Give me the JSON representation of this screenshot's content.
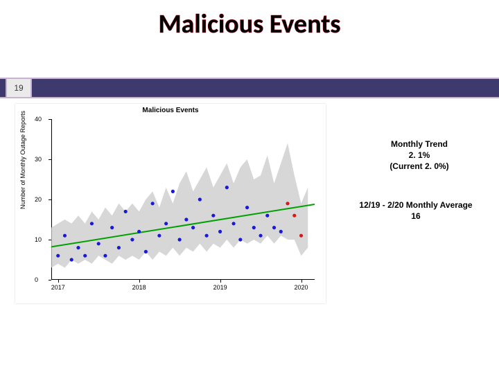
{
  "title": "Malicious Events",
  "page_number": "19",
  "info_block_1": {
    "line1": "Monthly Trend",
    "line2": "2. 1%",
    "line3": "(Current 2. 0%)"
  },
  "info_block_2": {
    "line1": "12/19 - 2/20 Monthly Average",
    "line2": "16"
  },
  "chart": {
    "type": "scatter-with-trend-and-band",
    "title": "Malicious Events",
    "ylabel": "Number of Monthly Outage Reports",
    "background_color": "#ffffff",
    "axis_color": "#000000",
    "label_fontsize": 9,
    "title_fontsize": 10,
    "xlim": [
      0,
      39
    ],
    "ylim": [
      0,
      40
    ],
    "ytick_step": 10,
    "yticks": [
      0,
      10,
      20,
      30,
      40
    ],
    "xtick_positions": [
      1,
      13,
      25,
      37
    ],
    "xtick_labels": [
      "2017",
      "2018",
      "2019",
      "2020"
    ],
    "band_color": "#c9c9c9",
    "band_opacity": 0.75,
    "band_upper": [
      13,
      14,
      15,
      14,
      16,
      14,
      17,
      15,
      18,
      16,
      19,
      17,
      19,
      17,
      20,
      22,
      18,
      23,
      19,
      24,
      27,
      22,
      25,
      28,
      23,
      26,
      29,
      24,
      28,
      30,
      25,
      26,
      31,
      24,
      29,
      34,
      26,
      19,
      23
    ],
    "band_lower": [
      3,
      4,
      3,
      5,
      4,
      5,
      4,
      6,
      5,
      4,
      6,
      5,
      6,
      5,
      7,
      5,
      7,
      6,
      8,
      6,
      8,
      7,
      9,
      7,
      9,
      8,
      10,
      8,
      10,
      9,
      10,
      9,
      11,
      9,
      11,
      10,
      10,
      6,
      8
    ],
    "trend": {
      "color": "#00a000",
      "width": 2,
      "x": [
        0,
        39
      ],
      "y": [
        8.2,
        18.8
      ]
    },
    "scatter": {
      "color_default": "#1a1ad6",
      "color_highlight": "#d61a1a",
      "marker": "circle",
      "radius": 2.6,
      "points": [
        {
          "x": 1,
          "y": 6
        },
        {
          "x": 2,
          "y": 11
        },
        {
          "x": 3,
          "y": 5
        },
        {
          "x": 4,
          "y": 8
        },
        {
          "x": 5,
          "y": 6
        },
        {
          "x": 6,
          "y": 14
        },
        {
          "x": 7,
          "y": 9
        },
        {
          "x": 8,
          "y": 6
        },
        {
          "x": 9,
          "y": 13
        },
        {
          "x": 10,
          "y": 8
        },
        {
          "x": 11,
          "y": 17
        },
        {
          "x": 12,
          "y": 10
        },
        {
          "x": 13,
          "y": 12
        },
        {
          "x": 14,
          "y": 7
        },
        {
          "x": 15,
          "y": 19
        },
        {
          "x": 16,
          "y": 11
        },
        {
          "x": 17,
          "y": 14
        },
        {
          "x": 18,
          "y": 22
        },
        {
          "x": 19,
          "y": 10
        },
        {
          "x": 20,
          "y": 15
        },
        {
          "x": 21,
          "y": 13
        },
        {
          "x": 22,
          "y": 20
        },
        {
          "x": 23,
          "y": 11
        },
        {
          "x": 24,
          "y": 16
        },
        {
          "x": 25,
          "y": 12
        },
        {
          "x": 26,
          "y": 23
        },
        {
          "x": 27,
          "y": 14
        },
        {
          "x": 28,
          "y": 10
        },
        {
          "x": 29,
          "y": 18
        },
        {
          "x": 30,
          "y": 13
        },
        {
          "x": 31,
          "y": 11
        },
        {
          "x": 32,
          "y": 16
        },
        {
          "x": 33,
          "y": 13
        },
        {
          "x": 34,
          "y": 12
        },
        {
          "x": 35,
          "y": 19,
          "c": "#d61a1a"
        },
        {
          "x": 36,
          "y": 16,
          "c": "#d61a1a"
        },
        {
          "x": 37,
          "y": 11,
          "c": "#d61a1a"
        }
      ]
    }
  }
}
